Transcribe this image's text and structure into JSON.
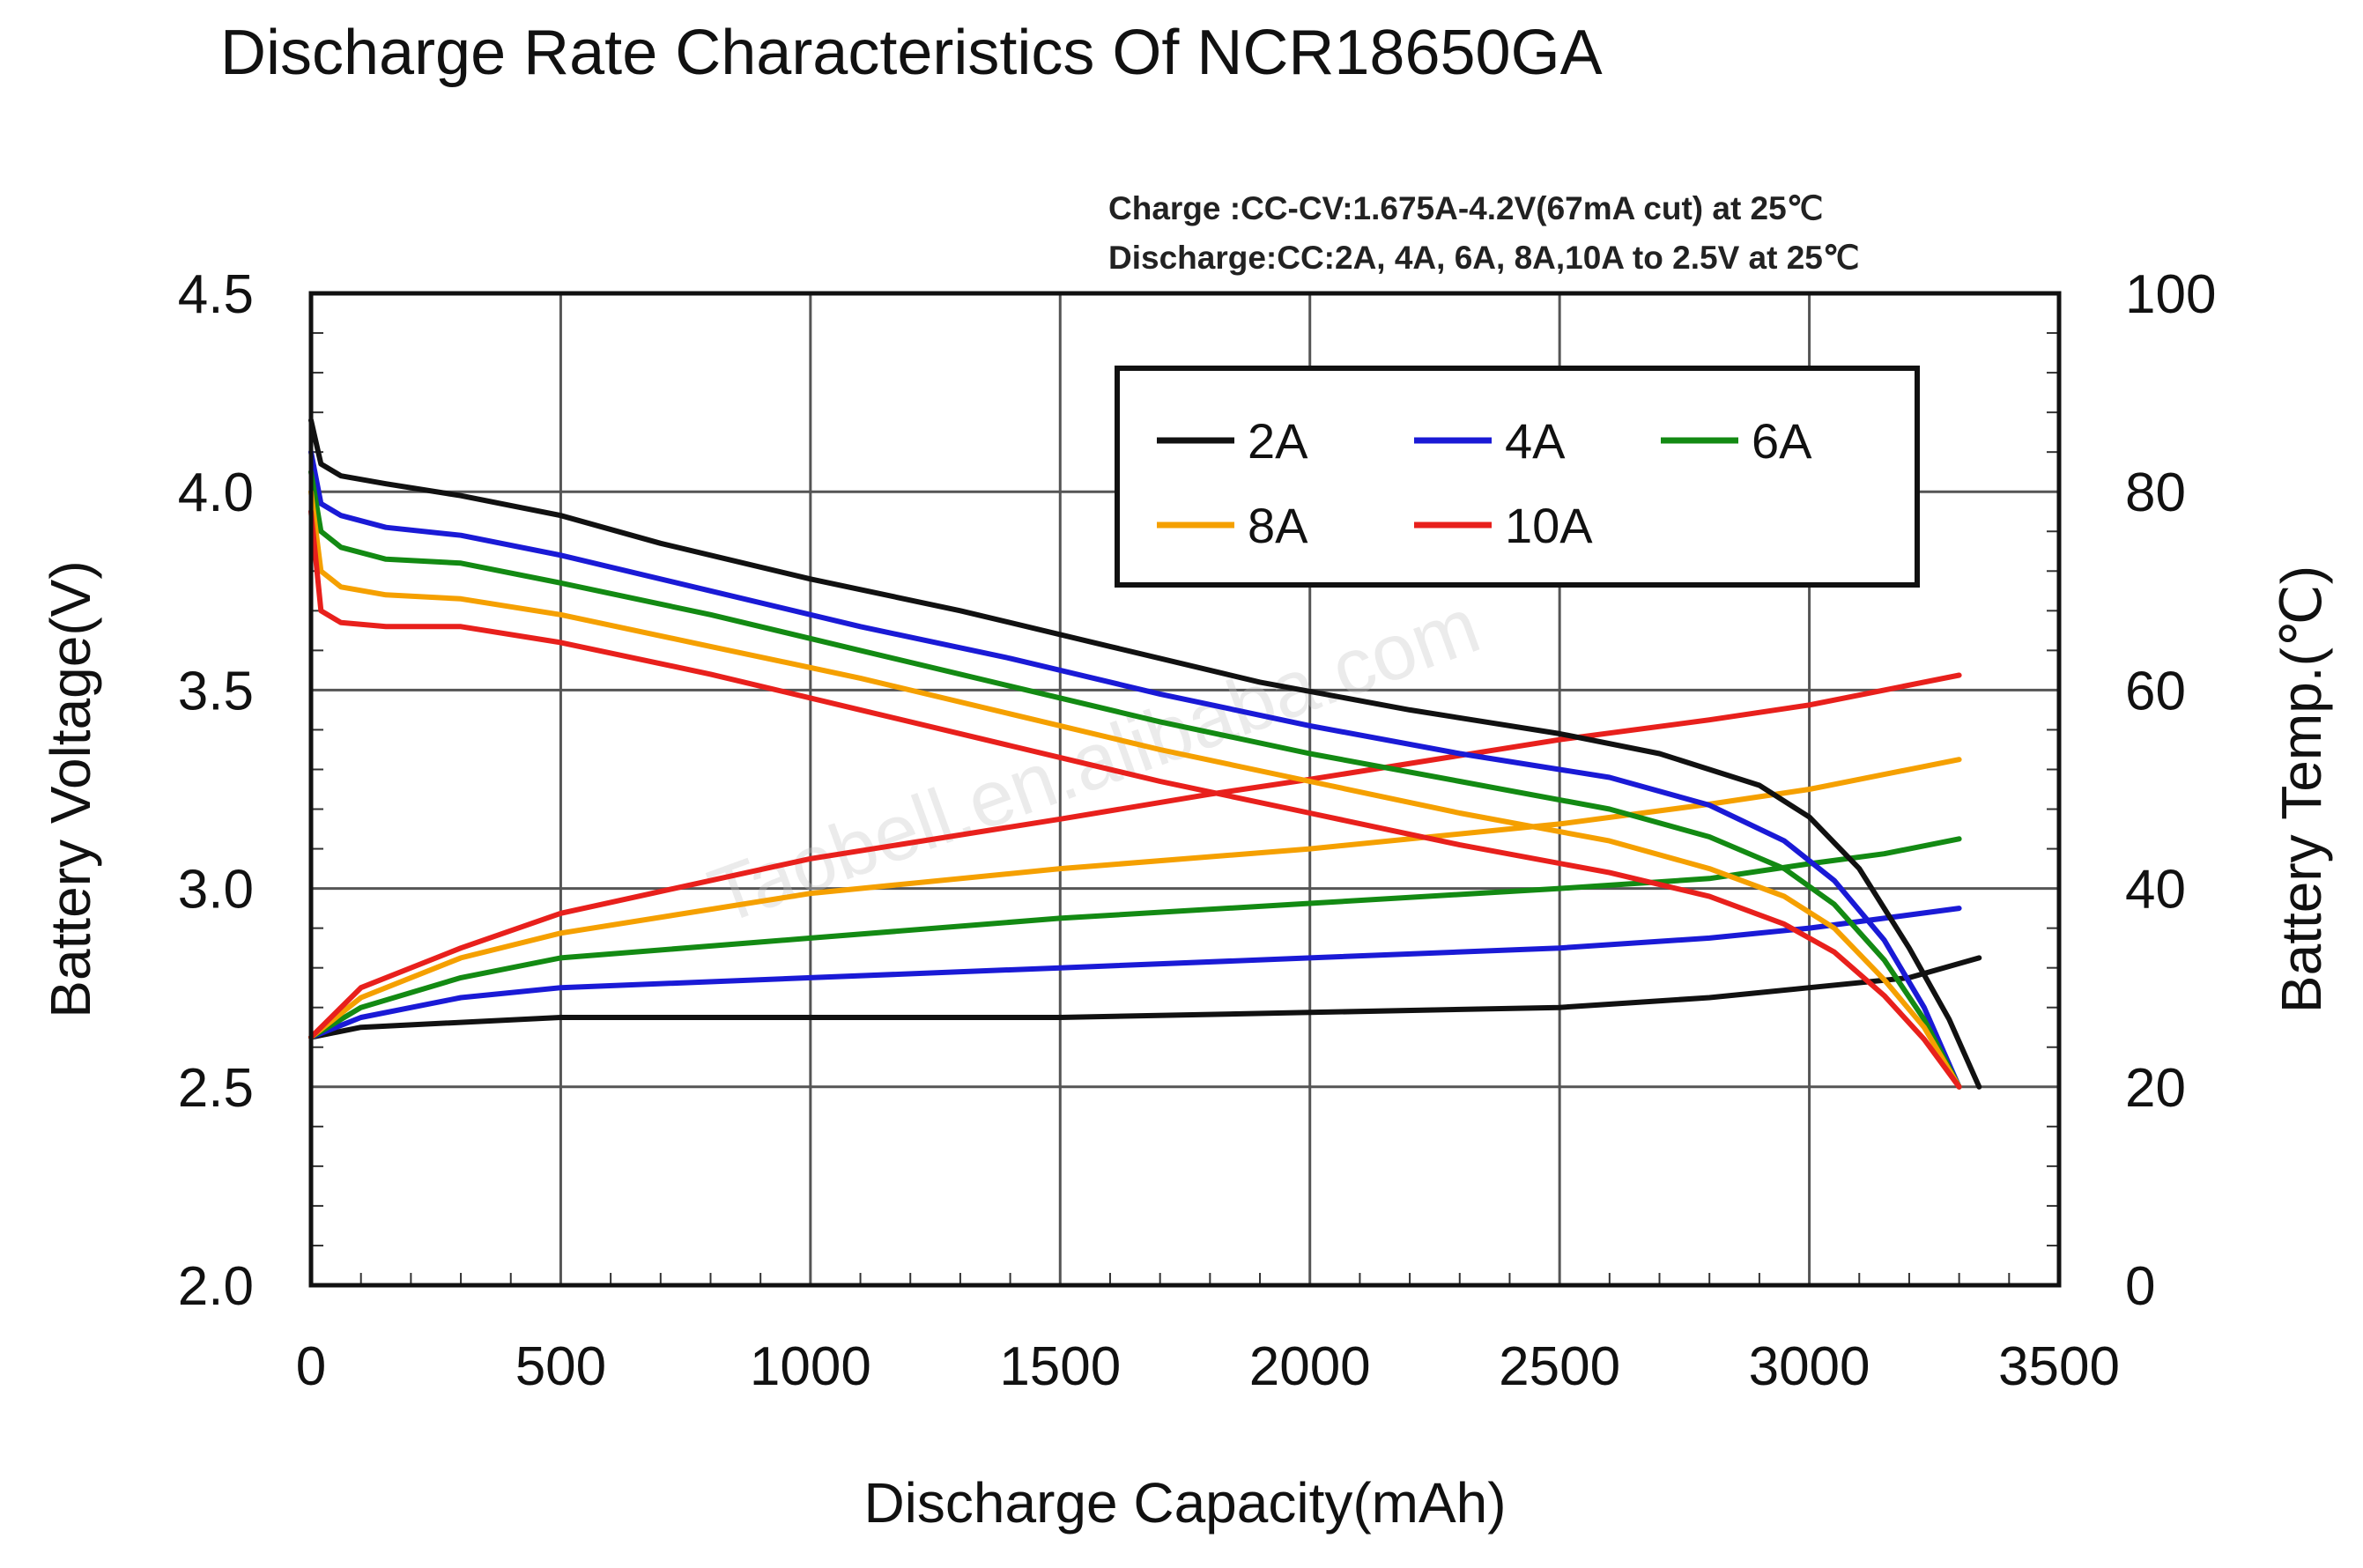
{
  "chart_data": {
    "type": "line",
    "title": "Discharge Rate Characteristics Of NCR18650GA",
    "notes": [
      "Charge :CC-CV:1.675A-4.2V(67mA cut) at 25℃",
      "Discharge:CC:2A, 4A, 6A, 8A,10A to 2.5V at 25℃"
    ],
    "watermark": "Taobell.en.alibaba.com",
    "xlabel": "Discharge Capacity(mAh)",
    "ylabel": "Battery Voltage(V)",
    "y2label": "Battery Temp.(℃)",
    "xlim": [
      0,
      3500
    ],
    "ylim": [
      2.0,
      4.5
    ],
    "y2lim": [
      0,
      100
    ],
    "x_ticks": [
      "0",
      "500",
      "1000",
      "1500",
      "2000",
      "2500",
      "3000",
      "3500"
    ],
    "y_ticks": [
      "2.0",
      "2.5",
      "3.0",
      "3.5",
      "4.0",
      "4.5"
    ],
    "y2_ticks": [
      "0",
      "20",
      "40",
      "60",
      "80",
      "100"
    ],
    "legend": [
      "2A",
      "4A",
      "6A",
      "8A",
      "10A"
    ],
    "colors": {
      "2A": "#111111",
      "4A": "#1a1ad6",
      "6A": "#138a13",
      "8A": "#f5a000",
      "10A": "#e8201c"
    },
    "series": [
      {
        "name": "2A",
        "kind": "voltage",
        "x": [
          0,
          20,
          60,
          150,
          300,
          500,
          700,
          1000,
          1300,
          1600,
          1900,
          2200,
          2500,
          2700,
          2900,
          3000,
          3100,
          3200,
          3280,
          3340
        ],
        "values": [
          4.18,
          4.07,
          4.04,
          4.02,
          3.99,
          3.94,
          3.87,
          3.78,
          3.7,
          3.61,
          3.52,
          3.45,
          3.39,
          3.34,
          3.26,
          3.18,
          3.05,
          2.85,
          2.67,
          2.5
        ]
      },
      {
        "name": "4A",
        "kind": "voltage",
        "x": [
          0,
          20,
          60,
          150,
          300,
          500,
          800,
          1100,
          1400,
          1700,
          2000,
          2300,
          2600,
          2800,
          2950,
          3050,
          3150,
          3230,
          3300
        ],
        "values": [
          4.1,
          3.97,
          3.94,
          3.91,
          3.89,
          3.84,
          3.75,
          3.66,
          3.58,
          3.49,
          3.41,
          3.34,
          3.28,
          3.21,
          3.12,
          3.02,
          2.87,
          2.7,
          2.5
        ]
      },
      {
        "name": "6A",
        "kind": "voltage",
        "x": [
          0,
          20,
          60,
          150,
          300,
          500,
          800,
          1100,
          1400,
          1700,
          2000,
          2300,
          2600,
          2800,
          2950,
          3050,
          3150,
          3230,
          3300
        ],
        "values": [
          4.05,
          3.9,
          3.86,
          3.83,
          3.82,
          3.77,
          3.69,
          3.6,
          3.51,
          3.42,
          3.34,
          3.27,
          3.2,
          3.13,
          3.05,
          2.96,
          2.82,
          2.67,
          2.5
        ]
      },
      {
        "name": "8A",
        "kind": "voltage",
        "x": [
          0,
          20,
          60,
          150,
          300,
          500,
          800,
          1100,
          1400,
          1700,
          2000,
          2300,
          2600,
          2800,
          2950,
          3050,
          3150,
          3230,
          3300
        ],
        "values": [
          4.0,
          3.8,
          3.76,
          3.74,
          3.73,
          3.69,
          3.61,
          3.53,
          3.44,
          3.35,
          3.27,
          3.19,
          3.12,
          3.05,
          2.98,
          2.9,
          2.77,
          2.65,
          2.5
        ]
      },
      {
        "name": "10A",
        "kind": "voltage",
        "x": [
          0,
          20,
          60,
          150,
          300,
          500,
          800,
          1100,
          1400,
          1700,
          2000,
          2300,
          2600,
          2800,
          2950,
          3050,
          3150,
          3230,
          3300
        ],
        "values": [
          3.95,
          3.7,
          3.67,
          3.66,
          3.66,
          3.62,
          3.54,
          3.45,
          3.36,
          3.27,
          3.19,
          3.11,
          3.04,
          2.98,
          2.91,
          2.84,
          2.73,
          2.62,
          2.5
        ]
      },
      {
        "name": "2A",
        "kind": "temp",
        "x": [
          0,
          100,
          500,
          1000,
          1500,
          2000,
          2500,
          2800,
          3000,
          3200,
          3340
        ],
        "values": [
          25,
          26,
          27,
          27,
          27,
          27.5,
          28,
          29,
          30,
          31,
          33
        ]
      },
      {
        "name": "4A",
        "kind": "temp",
        "x": [
          0,
          100,
          300,
          500,
          1000,
          1500,
          2000,
          2500,
          2800,
          3000,
          3150,
          3300
        ],
        "values": [
          25,
          27,
          29,
          30,
          31,
          32,
          33,
          34,
          35,
          36,
          37,
          38
        ]
      },
      {
        "name": "6A",
        "kind": "temp",
        "x": [
          0,
          100,
          300,
          500,
          1000,
          1500,
          2000,
          2500,
          2800,
          3000,
          3150,
          3300
        ],
        "values": [
          25,
          28,
          31,
          33,
          35,
          37,
          38.5,
          40,
          41,
          42.5,
          43.5,
          45
        ]
      },
      {
        "name": "8A",
        "kind": "temp",
        "x": [
          0,
          100,
          300,
          500,
          1000,
          1500,
          2000,
          2500,
          2800,
          3000,
          3150,
          3300
        ],
        "values": [
          25,
          29,
          33,
          35.5,
          39.5,
          42,
          44,
          46.5,
          48.5,
          50,
          51.5,
          53
        ]
      },
      {
        "name": "10A",
        "kind": "temp",
        "x": [
          0,
          100,
          300,
          500,
          1000,
          1500,
          1800,
          2000,
          2500,
          2800,
          3000,
          3150,
          3300
        ],
        "values": [
          25,
          30,
          34,
          37.5,
          43,
          47,
          49.5,
          51,
          55,
          57,
          58.5,
          60,
          61.5
        ]
      }
    ]
  }
}
